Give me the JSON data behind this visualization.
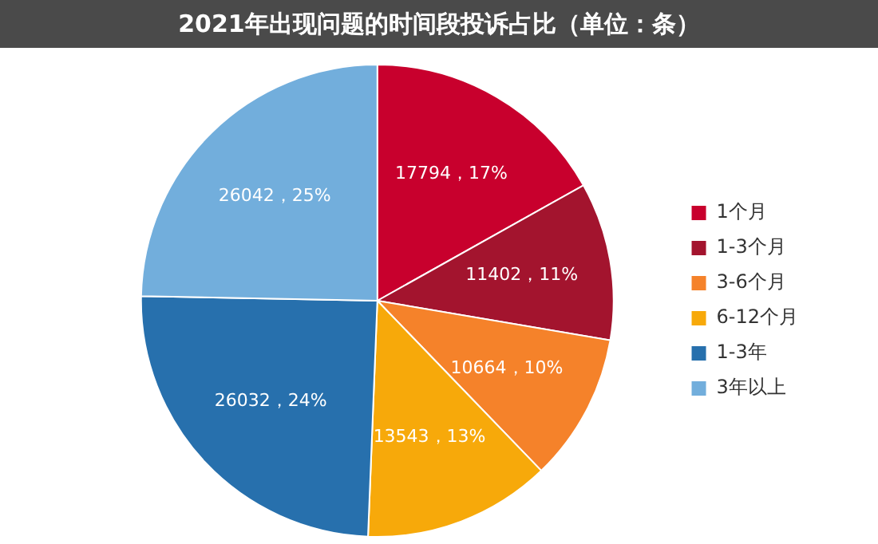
{
  "chart_data": {
    "type": "pie",
    "title": "2021年出现问题的时间段投诉占比（单位：条）",
    "categories": [
      "1个月",
      "1-3个月",
      "3-6个月",
      "6-12个月",
      "1-3年",
      "3年以上"
    ],
    "values": [
      17794,
      11402,
      10664,
      13543,
      26032,
      26042
    ],
    "colors": [
      "#c8002d",
      "#a3142e",
      "#f5822a",
      "#f7a90a",
      "#2770ad",
      "#72aedc"
    ],
    "value_labels": [
      "17794，17%",
      "11402，11%",
      "10664，10%",
      "13543，13%",
      "26032，24%",
      "26042，25%"
    ],
    "legend": "right"
  }
}
